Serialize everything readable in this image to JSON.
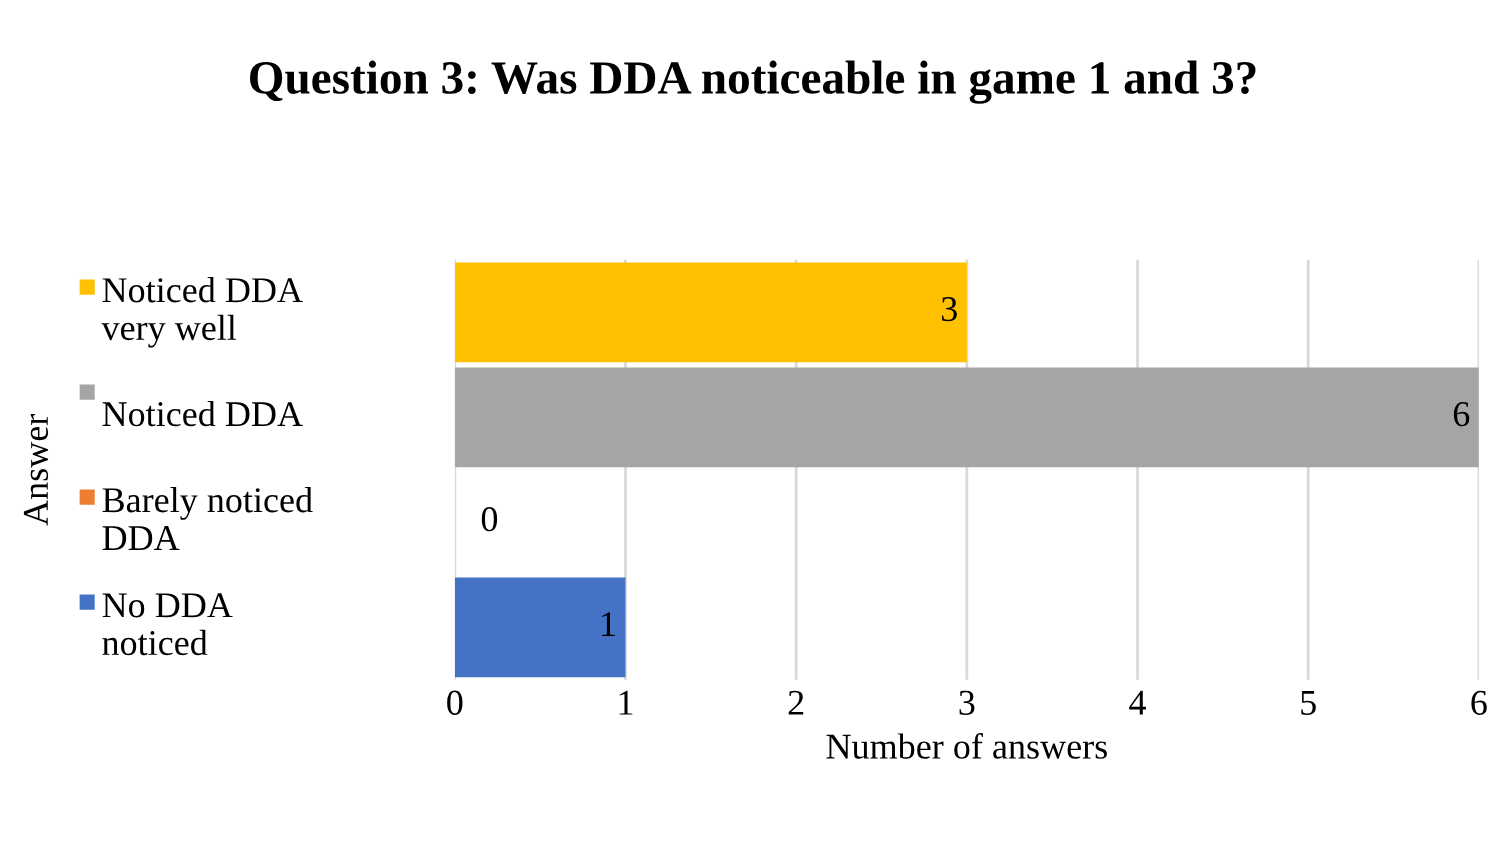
{
  "chart_data": {
    "type": "bar",
    "orientation": "horizontal",
    "title": "Question 3: Was DDA noticeable in game 1 and 3?",
    "xlabel": "Number of answers",
    "ylabel": "Answer",
    "categories": [
      "Noticed DDA\nvery well",
      "Noticed DDA",
      "Barely noticed\nDDA",
      "No DDA\nnoticed"
    ],
    "values": [
      3,
      6,
      0,
      1
    ],
    "colors": [
      "#ffc000",
      "#a5a5a5",
      "#ed7d31",
      "#4472c4"
    ],
    "xlim": [
      0,
      6
    ],
    "xticks": [
      0,
      1,
      2,
      3,
      4,
      5,
      6
    ],
    "grid": "x",
    "data_labels": true
  }
}
